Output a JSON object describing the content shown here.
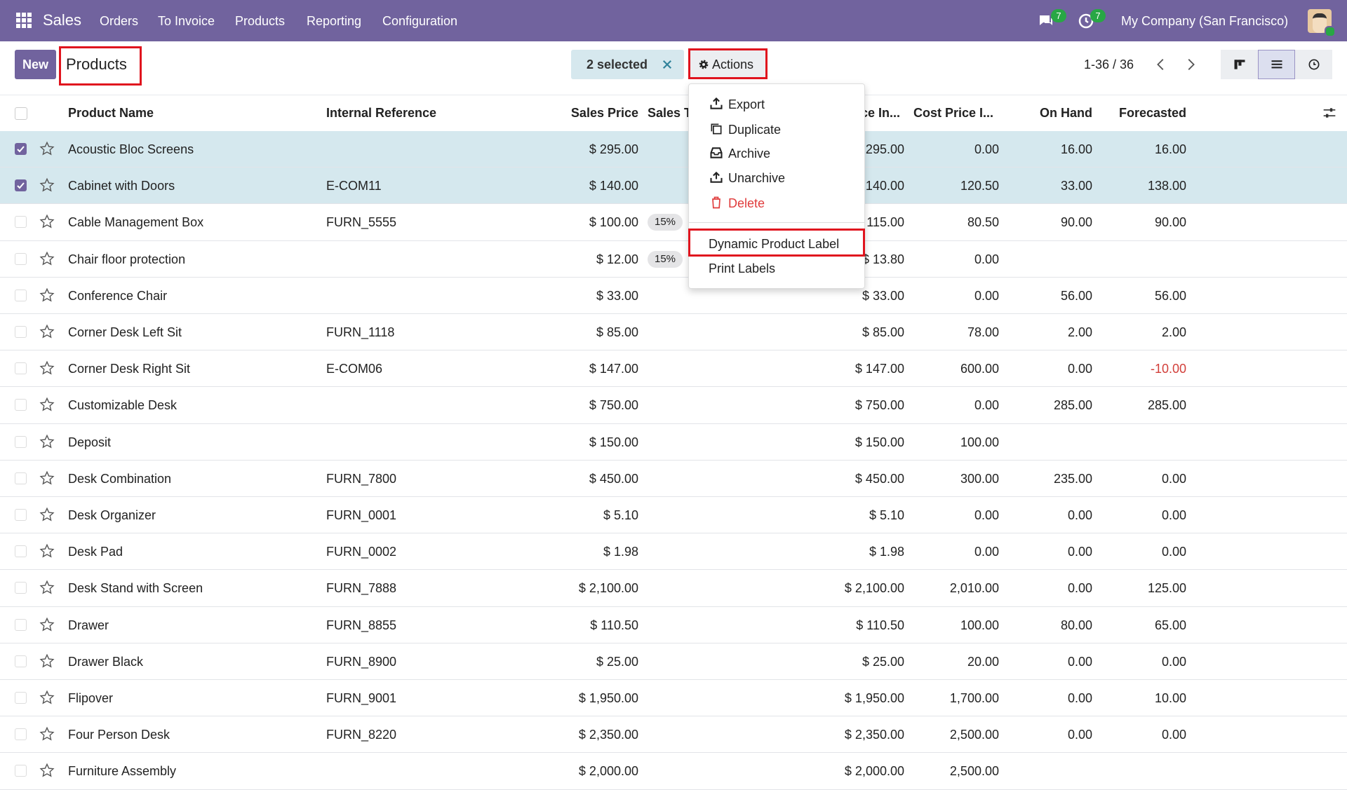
{
  "navbar": {
    "app": "Sales",
    "menu": [
      "Orders",
      "To Invoice",
      "Products",
      "Reporting",
      "Configuration"
    ],
    "messages_badge": "7",
    "activities_badge": "7",
    "company": "My Company (San Francisco)"
  },
  "control_panel": {
    "new_button": "New",
    "breadcrumb": "Products",
    "selection": "2 selected",
    "actions_button": "Actions",
    "pager": "1-36 / 36"
  },
  "table": {
    "columns": [
      "Product Name",
      "Internal Reference",
      "Sales Price",
      "Sales Taxes",
      "Sales Price In...",
      "Cost Price I...",
      "On Hand",
      "Forecasted"
    ],
    "rows": [
      {
        "selected": true,
        "name": "Acoustic Bloc Screens",
        "price": "$ 295.00",
        "price_incl": "$ 295.00",
        "cost": "0.00",
        "on_hand": "16.00",
        "forecasted": "16.00"
      },
      {
        "selected": true,
        "name": "Cabinet with Doors",
        "ref": "E-COM11",
        "price": "$ 140.00",
        "price_incl": "$ 140.00",
        "cost": "120.50",
        "on_hand": "33.00",
        "forecasted": "138.00"
      },
      {
        "name": "Cable Management Box",
        "ref": "FURN_5555",
        "price": "$ 100.00",
        "tax": "15%",
        "price_incl": "$ 115.00",
        "cost": "80.50",
        "on_hand": "90.00",
        "forecasted": "90.00"
      },
      {
        "name": "Chair floor protection",
        "price": "$ 12.00",
        "tax": "15%",
        "price_incl": "$ 13.80",
        "cost": "0.00"
      },
      {
        "name": "Conference Chair",
        "price": "$ 33.00",
        "price_incl": "$ 33.00",
        "cost": "0.00",
        "on_hand": "56.00",
        "forecasted": "56.00"
      },
      {
        "name": "Corner Desk Left Sit",
        "ref": "FURN_1118",
        "price": "$ 85.00",
        "price_incl": "$ 85.00",
        "cost": "78.00",
        "on_hand": "2.00",
        "forecasted": "2.00"
      },
      {
        "name": "Corner Desk Right Sit",
        "ref": "E-COM06",
        "price": "$ 147.00",
        "price_incl": "$ 147.00",
        "cost": "600.00",
        "on_hand": "0.00",
        "forecasted": "-10.00"
      },
      {
        "name": "Customizable Desk",
        "price": "$ 750.00",
        "price_incl": "$ 750.00",
        "cost": "0.00",
        "on_hand": "285.00",
        "forecasted": "285.00"
      },
      {
        "name": "Deposit",
        "price": "$ 150.00",
        "price_incl": "$ 150.00",
        "cost": "100.00"
      },
      {
        "name": "Desk Combination",
        "ref": "FURN_7800",
        "price": "$ 450.00",
        "price_incl": "$ 450.00",
        "cost": "300.00",
        "on_hand": "235.00",
        "forecasted": "0.00"
      },
      {
        "name": "Desk Organizer",
        "ref": "FURN_0001",
        "price": "$ 5.10",
        "price_incl": "$ 5.10",
        "cost": "0.00",
        "on_hand": "0.00",
        "forecasted": "0.00"
      },
      {
        "name": "Desk Pad",
        "ref": "FURN_0002",
        "price": "$ 1.98",
        "price_incl": "$ 1.98",
        "cost": "0.00",
        "on_hand": "0.00",
        "forecasted": "0.00"
      },
      {
        "name": "Desk Stand with Screen",
        "ref": "FURN_7888",
        "price": "$ 2,100.00",
        "price_incl": "$ 2,100.00",
        "cost": "2,010.00",
        "on_hand": "0.00",
        "forecasted": "125.00"
      },
      {
        "name": "Drawer",
        "ref": "FURN_8855",
        "price": "$ 110.50",
        "price_incl": "$ 110.50",
        "cost": "100.00",
        "on_hand": "80.00",
        "forecasted": "65.00"
      },
      {
        "name": "Drawer Black",
        "ref": "FURN_8900",
        "price": "$ 25.00",
        "price_incl": "$ 25.00",
        "cost": "20.00",
        "on_hand": "0.00",
        "forecasted": "0.00"
      },
      {
        "name": "Flipover",
        "ref": "FURN_9001",
        "price": "$ 1,950.00",
        "price_incl": "$ 1,950.00",
        "cost": "1,700.00",
        "on_hand": "0.00",
        "forecasted": "10.00"
      },
      {
        "name": "Four Person Desk",
        "ref": "FURN_8220",
        "price": "$ 2,350.00",
        "price_incl": "$ 2,350.00",
        "cost": "2,500.00",
        "on_hand": "0.00",
        "forecasted": "0.00"
      },
      {
        "name": "Furniture Assembly",
        "price": "$ 2,000.00",
        "price_incl": "$ 2,000.00",
        "cost": "2,500.00"
      }
    ]
  },
  "actions_menu": {
    "items": [
      "Export",
      "Duplicate",
      "Archive",
      "Unarchive",
      "Delete"
    ],
    "extra_items": [
      "Dynamic Product Label",
      "Print Labels"
    ]
  }
}
